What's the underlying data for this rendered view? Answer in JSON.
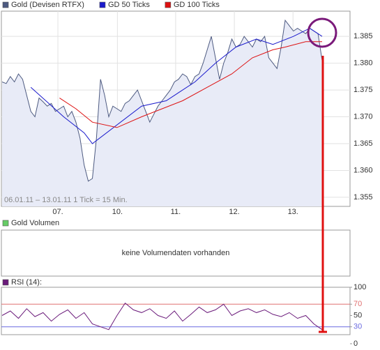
{
  "chart_data": [
    {
      "type": "line",
      "caption": "06.01.11 – 13.01.11   1 Tick = 15 Min.",
      "grid": true,
      "xlim": [
        0,
        78
      ],
      "xticks": [
        {
          "value": 13.6,
          "label": "07."
        },
        {
          "value": 28.1,
          "label": "10."
        },
        {
          "value": 42.3,
          "label": "11."
        },
        {
          "value": 56.6,
          "label": "12."
        },
        {
          "value": 70.9,
          "label": "13."
        }
      ],
      "ylim": [
        1.3533,
        1.3897
      ],
      "yticks": [
        1.385,
        {
          "value": 1.38,
          "label": "1.380"
        },
        1.375,
        {
          "value": 1.37,
          "label": "1.370"
        },
        1.365,
        {
          "value": 1.36,
          "label": "1.360"
        },
        1.355
      ],
      "series": [
        {
          "name": "Gold (Devisen RTFX)",
          "color": "#4d5a80",
          "fill": "#e8ebf7",
          "x": [
            0,
            1,
            2,
            3,
            4,
            5,
            6,
            7,
            8,
            9,
            10,
            11,
            12,
            13,
            14,
            15,
            16,
            17,
            18,
            19,
            20,
            21,
            22,
            23,
            24,
            25,
            26,
            27,
            28,
            29,
            30,
            31,
            32,
            33,
            34,
            35,
            36,
            37,
            38,
            39,
            40,
            41,
            42,
            43,
            44,
            45,
            46,
            47,
            48,
            49,
            50,
            51,
            52,
            53,
            54,
            55,
            56,
            57,
            58,
            59,
            60,
            61,
            62,
            63,
            64,
            65,
            66,
            67,
            68,
            69,
            70,
            71,
            72,
            73,
            74,
            75,
            76,
            77,
            78
          ],
          "values": [
            1.3765,
            1.3762,
            1.3775,
            1.3765,
            1.378,
            1.377,
            1.374,
            1.371,
            1.37,
            1.3735,
            1.3728,
            1.372,
            1.3725,
            1.371,
            1.3715,
            1.372,
            1.37,
            1.371,
            1.369,
            1.366,
            1.361,
            1.358,
            1.3585,
            1.366,
            1.377,
            1.374,
            1.37,
            1.372,
            1.3715,
            1.371,
            1.3725,
            1.373,
            1.374,
            1.375,
            1.373,
            1.371,
            1.369,
            1.3705,
            1.372,
            1.373,
            1.374,
            1.375,
            1.3765,
            1.377,
            1.378,
            1.3775,
            1.376,
            1.3775,
            1.378,
            1.38,
            1.3825,
            1.385,
            1.381,
            1.377,
            1.38,
            1.382,
            1.3845,
            1.383,
            1.3835,
            1.385,
            1.384,
            1.383,
            1.3845,
            1.384,
            1.385,
            1.381,
            1.38,
            1.379,
            1.383,
            1.388,
            1.387,
            1.386,
            1.3865,
            1.386,
            1.3855,
            1.3865,
            1.386,
            1.3855,
            1.3805
          ]
        },
        {
          "name": "GD 50 Ticks",
          "color": "#1a1acc",
          "x": [
            7,
            15,
            20,
            22,
            34,
            40,
            47,
            52,
            57,
            62,
            66,
            71,
            75,
            78
          ],
          "values": [
            1.3755,
            1.37,
            1.367,
            1.365,
            1.372,
            1.373,
            1.3765,
            1.38,
            1.383,
            1.3845,
            1.3835,
            1.385,
            1.3865,
            1.385
          ]
        },
        {
          "name": "GD 100 Ticks",
          "color": "#dd1111",
          "x": [
            14,
            18,
            22,
            28,
            34,
            39,
            44,
            50,
            56,
            61,
            66,
            69,
            74,
            78
          ],
          "values": [
            1.3735,
            1.3715,
            1.369,
            1.368,
            1.37,
            1.3715,
            1.373,
            1.3755,
            1.378,
            1.381,
            1.3825,
            1.383,
            1.384,
            1.384
          ]
        }
      ]
    },
    {
      "type": "bar",
      "annotation": "keine Volumendaten vorhanden",
      "series": [
        {
          "name": "Gold Volumen",
          "color": "#66cc66",
          "values": []
        }
      ]
    },
    {
      "type": "line",
      "xlim": [
        0,
        78
      ],
      "ylim": [
        0,
        100
      ],
      "yticks": [
        100,
        70,
        50,
        30,
        0
      ],
      "hlines": [
        {
          "value": 70,
          "color": "#e07070"
        },
        {
          "value": 30,
          "color": "#6a6ae0"
        }
      ],
      "series": [
        {
          "name": "RSI (14):",
          "color": "#6a1a7a",
          "x": [
            0,
            2,
            4,
            6,
            8,
            10,
            12,
            14,
            16,
            18,
            20,
            22,
            24,
            26,
            28,
            30,
            32,
            34,
            36,
            38,
            40,
            42,
            44,
            46,
            48,
            50,
            52,
            54,
            56,
            58,
            60,
            62,
            64,
            66,
            68,
            70,
            72,
            74,
            76,
            78
          ],
          "values": [
            50,
            58,
            45,
            62,
            48,
            55,
            40,
            52,
            60,
            45,
            55,
            35,
            30,
            25,
            50,
            72,
            60,
            55,
            62,
            50,
            45,
            58,
            40,
            52,
            65,
            55,
            60,
            70,
            50,
            58,
            62,
            55,
            60,
            52,
            48,
            55,
            45,
            50,
            35,
            25
          ]
        }
      ]
    }
  ]
}
